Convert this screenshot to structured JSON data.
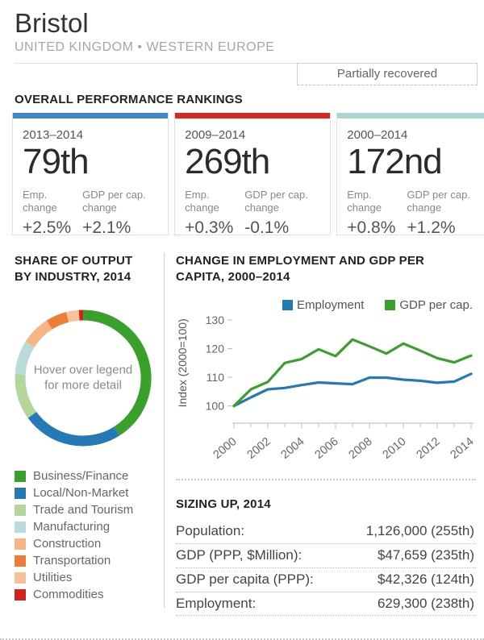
{
  "header": {
    "title": "Bristol",
    "subtitle": "UNITED KINGDOM • WESTERN EUROPE",
    "status": "Partially recovered"
  },
  "rankings": {
    "heading": "OVERALL PERFORMANCE RANKINGS",
    "emp_label": "Emp. change",
    "gdp_label": "GDP per cap. change",
    "cards": [
      {
        "period": "2013–2014",
        "rank": "79th",
        "accent": "#3f88c5",
        "emp_value": "+2.5%",
        "gdp_value": "+2.1%"
      },
      {
        "period": "2009–2014",
        "rank": "269th",
        "accent": "#d6281e",
        "emp_value": "+0.3%",
        "gdp_value": "-0.1%"
      },
      {
        "period": "2000–2014",
        "rank": "172nd",
        "accent": "#a9d6d3",
        "emp_value": "+0.8%",
        "gdp_value": "+1.2%"
      }
    ]
  },
  "industry": {
    "heading": "SHARE OF OUTPUT BY INDUSTRY, 2014",
    "center_note": "Hover over legend for more detail"
  },
  "employment_chart": {
    "heading": "CHANGE IN EMPLOYMENT AND GDP PER CAPITA, 2000–2014"
  },
  "sizing": {
    "heading": "SIZING UP, 2014",
    "rows": [
      {
        "label": "Population:",
        "value": "1,126,000 (255th)"
      },
      {
        "label": "GDP (PPP, $Million):",
        "value": "$47,659 (235th)"
      },
      {
        "label": "GDP per capita (PPP):",
        "value": "$42,326 (124th)"
      },
      {
        "label": "Employment:",
        "value": "629,300 (238th)"
      }
    ]
  },
  "chart_data": [
    {
      "type": "pie",
      "subtype": "donut",
      "title": "SHARE OF OUTPUT BY INDUSTRY, 2014",
      "center_note": "Hover over legend for more detail",
      "labels": [
        "Business/Finance",
        "Local/Non-Market",
        "Trade and Tourism",
        "Manufacturing",
        "Construction",
        "Transportation",
        "Utilities",
        "Commodities"
      ],
      "values": [
        41,
        24,
        11,
        8,
        7,
        5,
        3,
        1
      ],
      "colors": [
        "#3aa02c",
        "#2579b5",
        "#b5d69b",
        "#b9dcda",
        "#f7b484",
        "#ee7d36",
        "#f5c299",
        "#d2231c"
      ],
      "legend_position": "bottom",
      "values_note": "percent shares estimated from arc angles"
    },
    {
      "type": "line",
      "title": "CHANGE IN EMPLOYMENT AND GDP PER CAPITA, 2000–2014",
      "ylabel": "Index (2000=100)",
      "ylim": [
        94,
        130
      ],
      "yticks": [
        100,
        110,
        120,
        130
      ],
      "xticks": [
        2000,
        2002,
        2004,
        2006,
        2008,
        2010,
        2012,
        2014
      ],
      "x": [
        2000,
        2001,
        2002,
        2003,
        2004,
        2005,
        2006,
        2007,
        2008,
        2009,
        2010,
        2011,
        2012,
        2013,
        2014
      ],
      "series": [
        {
          "name": "Employment",
          "color": "#2579b5",
          "values": [
            100,
            103.0,
            105.8,
            106.3,
            107.3,
            108.2,
            107.9,
            107.6,
            109.9,
            109.9,
            109.2,
            108.8,
            108.1,
            108.5,
            111.2
          ]
        },
        {
          "name": "GDP per cap.",
          "color": "#3aa02c",
          "values": [
            100,
            105.8,
            108.4,
            115.0,
            116.4,
            119.8,
            117.4,
            123.2,
            120.8,
            118.3,
            121.8,
            119.3,
            116.7,
            115.2,
            117.6
          ]
        }
      ],
      "legend_position": "top",
      "grid": false
    }
  ]
}
